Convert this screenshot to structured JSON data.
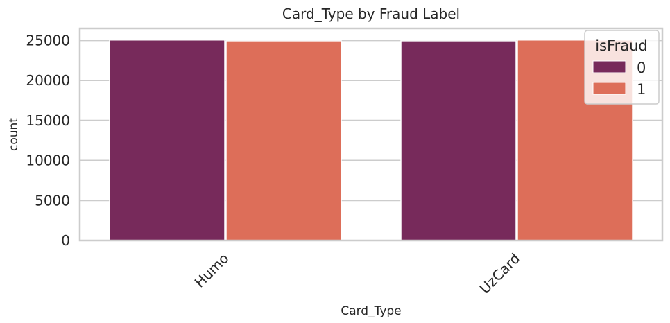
{
  "chart_data": {
    "type": "bar",
    "title": "Card_Type by Fraud Label",
    "xlabel": "Card_Type",
    "ylabel": "count",
    "categories": [
      "Humo",
      "UzCard"
    ],
    "series": [
      {
        "name": "0",
        "values": [
          25050,
          24950
        ],
        "color": "#772A5B"
      },
      {
        "name": "1",
        "values": [
          24950,
          25050
        ],
        "color": "#DD6E59"
      }
    ],
    "ylim": [
      0,
      26500
    ],
    "yticks": [
      0,
      5000,
      10000,
      15000,
      20000,
      25000
    ],
    "ytick_labels": [
      "0",
      "5000",
      "10000",
      "15000",
      "20000",
      "25000"
    ],
    "xtick_rotation": -45,
    "grid": "horizontal",
    "legend": {
      "title": "isFraud",
      "placement": "top-right"
    }
  }
}
